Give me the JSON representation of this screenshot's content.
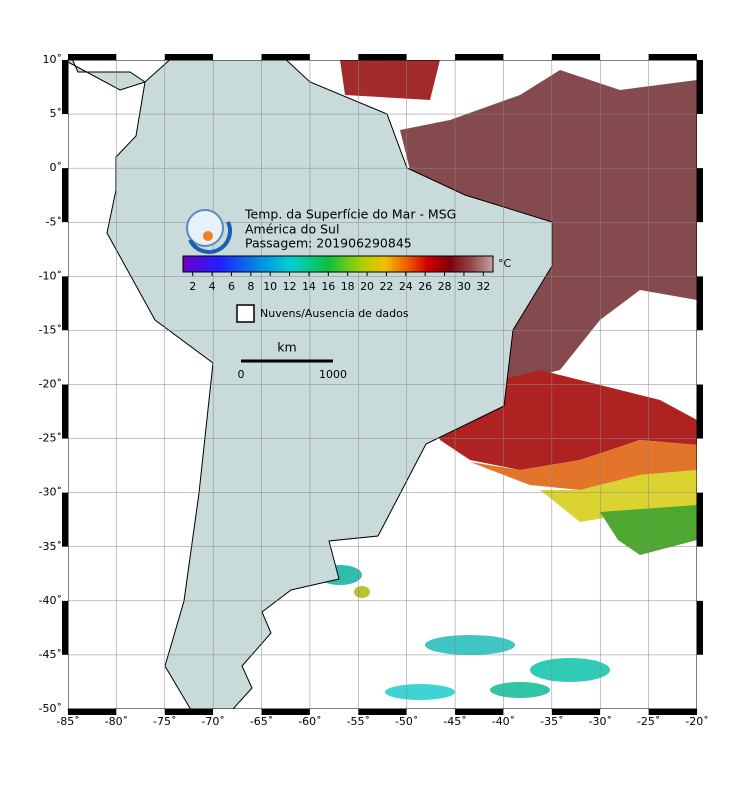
{
  "title": {
    "line1": "Temp. da Superfície do Mar - MSG",
    "line2": "América do Sul",
    "line3": "Passagem: 201906290845"
  },
  "colorbar": {
    "unit": "°C",
    "range": [
      1,
      33
    ],
    "ticks": [
      2,
      4,
      6,
      8,
      10,
      12,
      14,
      16,
      18,
      20,
      22,
      24,
      26,
      28,
      30,
      32
    ]
  },
  "legend": {
    "label": "Nuvens/Ausencia de dados"
  },
  "scale_bar": {
    "unit": "km",
    "start": 0,
    "end": 1000
  },
  "map": {
    "lon_range": [
      -85,
      -20
    ],
    "lat_range": [
      -50,
      10
    ],
    "lon_ticks": [
      {
        "value": -85,
        "label": "-85˚"
      },
      {
        "value": -80,
        "label": "-80˚"
      },
      {
        "value": -75,
        "label": "-75˚"
      },
      {
        "value": -70,
        "label": "-70˚"
      },
      {
        "value": -65,
        "label": "-65˚"
      },
      {
        "value": -60,
        "label": "-60˚"
      },
      {
        "value": -55,
        "label": "-55˚"
      },
      {
        "value": -50,
        "label": "-50˚"
      },
      {
        "value": -45,
        "label": "-45˚"
      },
      {
        "value": -40,
        "label": "-40˚"
      },
      {
        "value": -35,
        "label": "-35˚"
      },
      {
        "value": -30,
        "label": "-30˚"
      },
      {
        "value": -25,
        "label": "-25˚"
      },
      {
        "value": -20,
        "label": "-20˚"
      }
    ],
    "lat_ticks": [
      {
        "value": 10,
        "label": "10˚"
      },
      {
        "value": 5,
        "label": "5˚"
      },
      {
        "value": 0,
        "label": "0˚"
      },
      {
        "value": -5,
        "label": "-5˚"
      },
      {
        "value": -10,
        "label": "-10˚"
      },
      {
        "value": -15,
        "label": "-15˚"
      },
      {
        "value": -20,
        "label": "-20˚"
      },
      {
        "value": -25,
        "label": "-25˚"
      },
      {
        "value": -30,
        "label": "-30˚"
      },
      {
        "value": -35,
        "label": "-35˚"
      },
      {
        "value": -40,
        "label": "-40˚"
      },
      {
        "value": -45,
        "label": "-45˚"
      },
      {
        "value": -50,
        "label": "-50˚"
      }
    ]
  }
}
